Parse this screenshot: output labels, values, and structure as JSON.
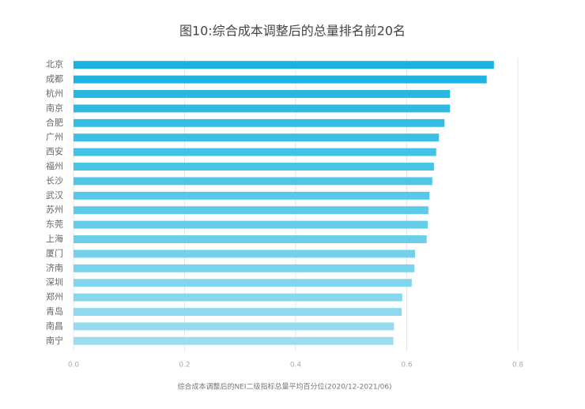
{
  "chart_data": {
    "type": "barh",
    "title": "图10:综合成本调整后的总量排名前20名",
    "xlabel": "综合成本调整后的NEI二级指标总量平均百分位(2020/12-2021/06)",
    "categories": [
      "北京",
      "成都",
      "杭州",
      "南京",
      "合肥",
      "广州",
      "西安",
      "福州",
      "长沙",
      "武汉",
      "苏州",
      "东莞",
      "上海",
      "厦门",
      "济南",
      "深圳",
      "郑州",
      "青岛",
      "南昌",
      "南宁"
    ],
    "values": [
      0.757,
      0.744,
      0.678,
      0.678,
      0.668,
      0.658,
      0.653,
      0.649,
      0.646,
      0.641,
      0.639,
      0.638,
      0.636,
      0.615,
      0.614,
      0.609,
      0.592,
      0.591,
      0.577,
      0.576
    ],
    "colors": [
      "#1ab3e0",
      "#1fb5e1",
      "#27b8e2",
      "#2dbae3",
      "#34bde4",
      "#3bc0e5",
      "#42c2e5",
      "#49c4e6",
      "#50c6e7",
      "#57c8e8",
      "#5ecae9",
      "#65cce9",
      "#6ccfea",
      "#73d1eb",
      "#7ad3ec",
      "#81d5ec",
      "#88d7ed",
      "#8fd9ee",
      "#96dbee",
      "#9ddcef"
    ],
    "xlim": [
      0,
      0.8
    ],
    "xticks": [
      {
        "value": 0,
        "label": "0.0"
      },
      0.2,
      0.4,
      0.6,
      0.8
    ],
    "grid": true
  }
}
